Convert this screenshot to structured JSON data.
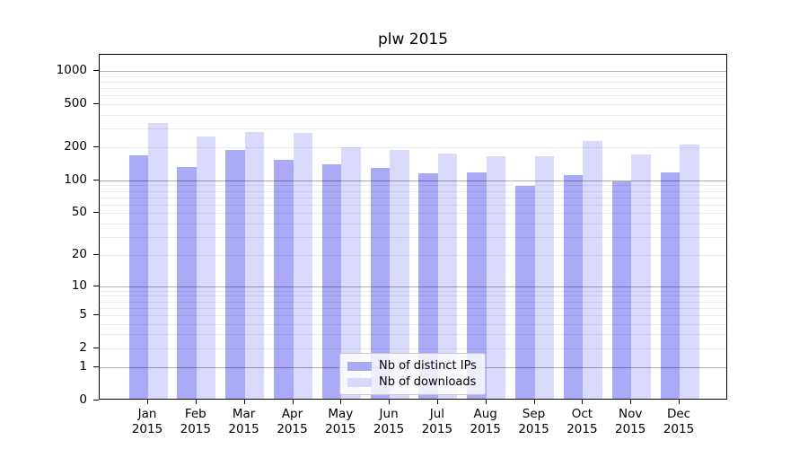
{
  "chart_data": {
    "type": "bar",
    "title": "plw 2015",
    "year": "2015",
    "categories": [
      "Jan",
      "Feb",
      "Mar",
      "Apr",
      "May",
      "Jun",
      "Jul",
      "Aug",
      "Sep",
      "Oct",
      "Nov",
      "Dec"
    ],
    "series": [
      {
        "name": "Nb of distinct IPs",
        "color": "#a9a9f5",
        "values": [
          165,
          127,
          182,
          148,
          134,
          125,
          112,
          115,
          85,
          107,
          95,
          115
        ]
      },
      {
        "name": "Nb of downloads",
        "color": "#d9d9fb",
        "values": [
          325,
          245,
          269,
          260,
          194,
          182,
          170,
          161,
          159,
          220,
          166,
          204
        ]
      }
    ],
    "yscale": "log(1+x)",
    "y_ticks": [
      0,
      1,
      2,
      5,
      10,
      20,
      50,
      100,
      200,
      500,
      1000
    ],
    "y_major_gridlines": [
      1,
      10,
      100,
      1000
    ],
    "ylim": [
      0,
      1404
    ],
    "grid": true,
    "legend_position": "lower center"
  },
  "colors": {
    "background": "#ffffff",
    "axis": "#000000",
    "grid_major": "#adadad",
    "grid_minor": "#ebebeb",
    "legend_border": "#c9c9c9",
    "bar_ips": "#a9a9f5",
    "bar_downloads": "#d9d9fb"
  }
}
